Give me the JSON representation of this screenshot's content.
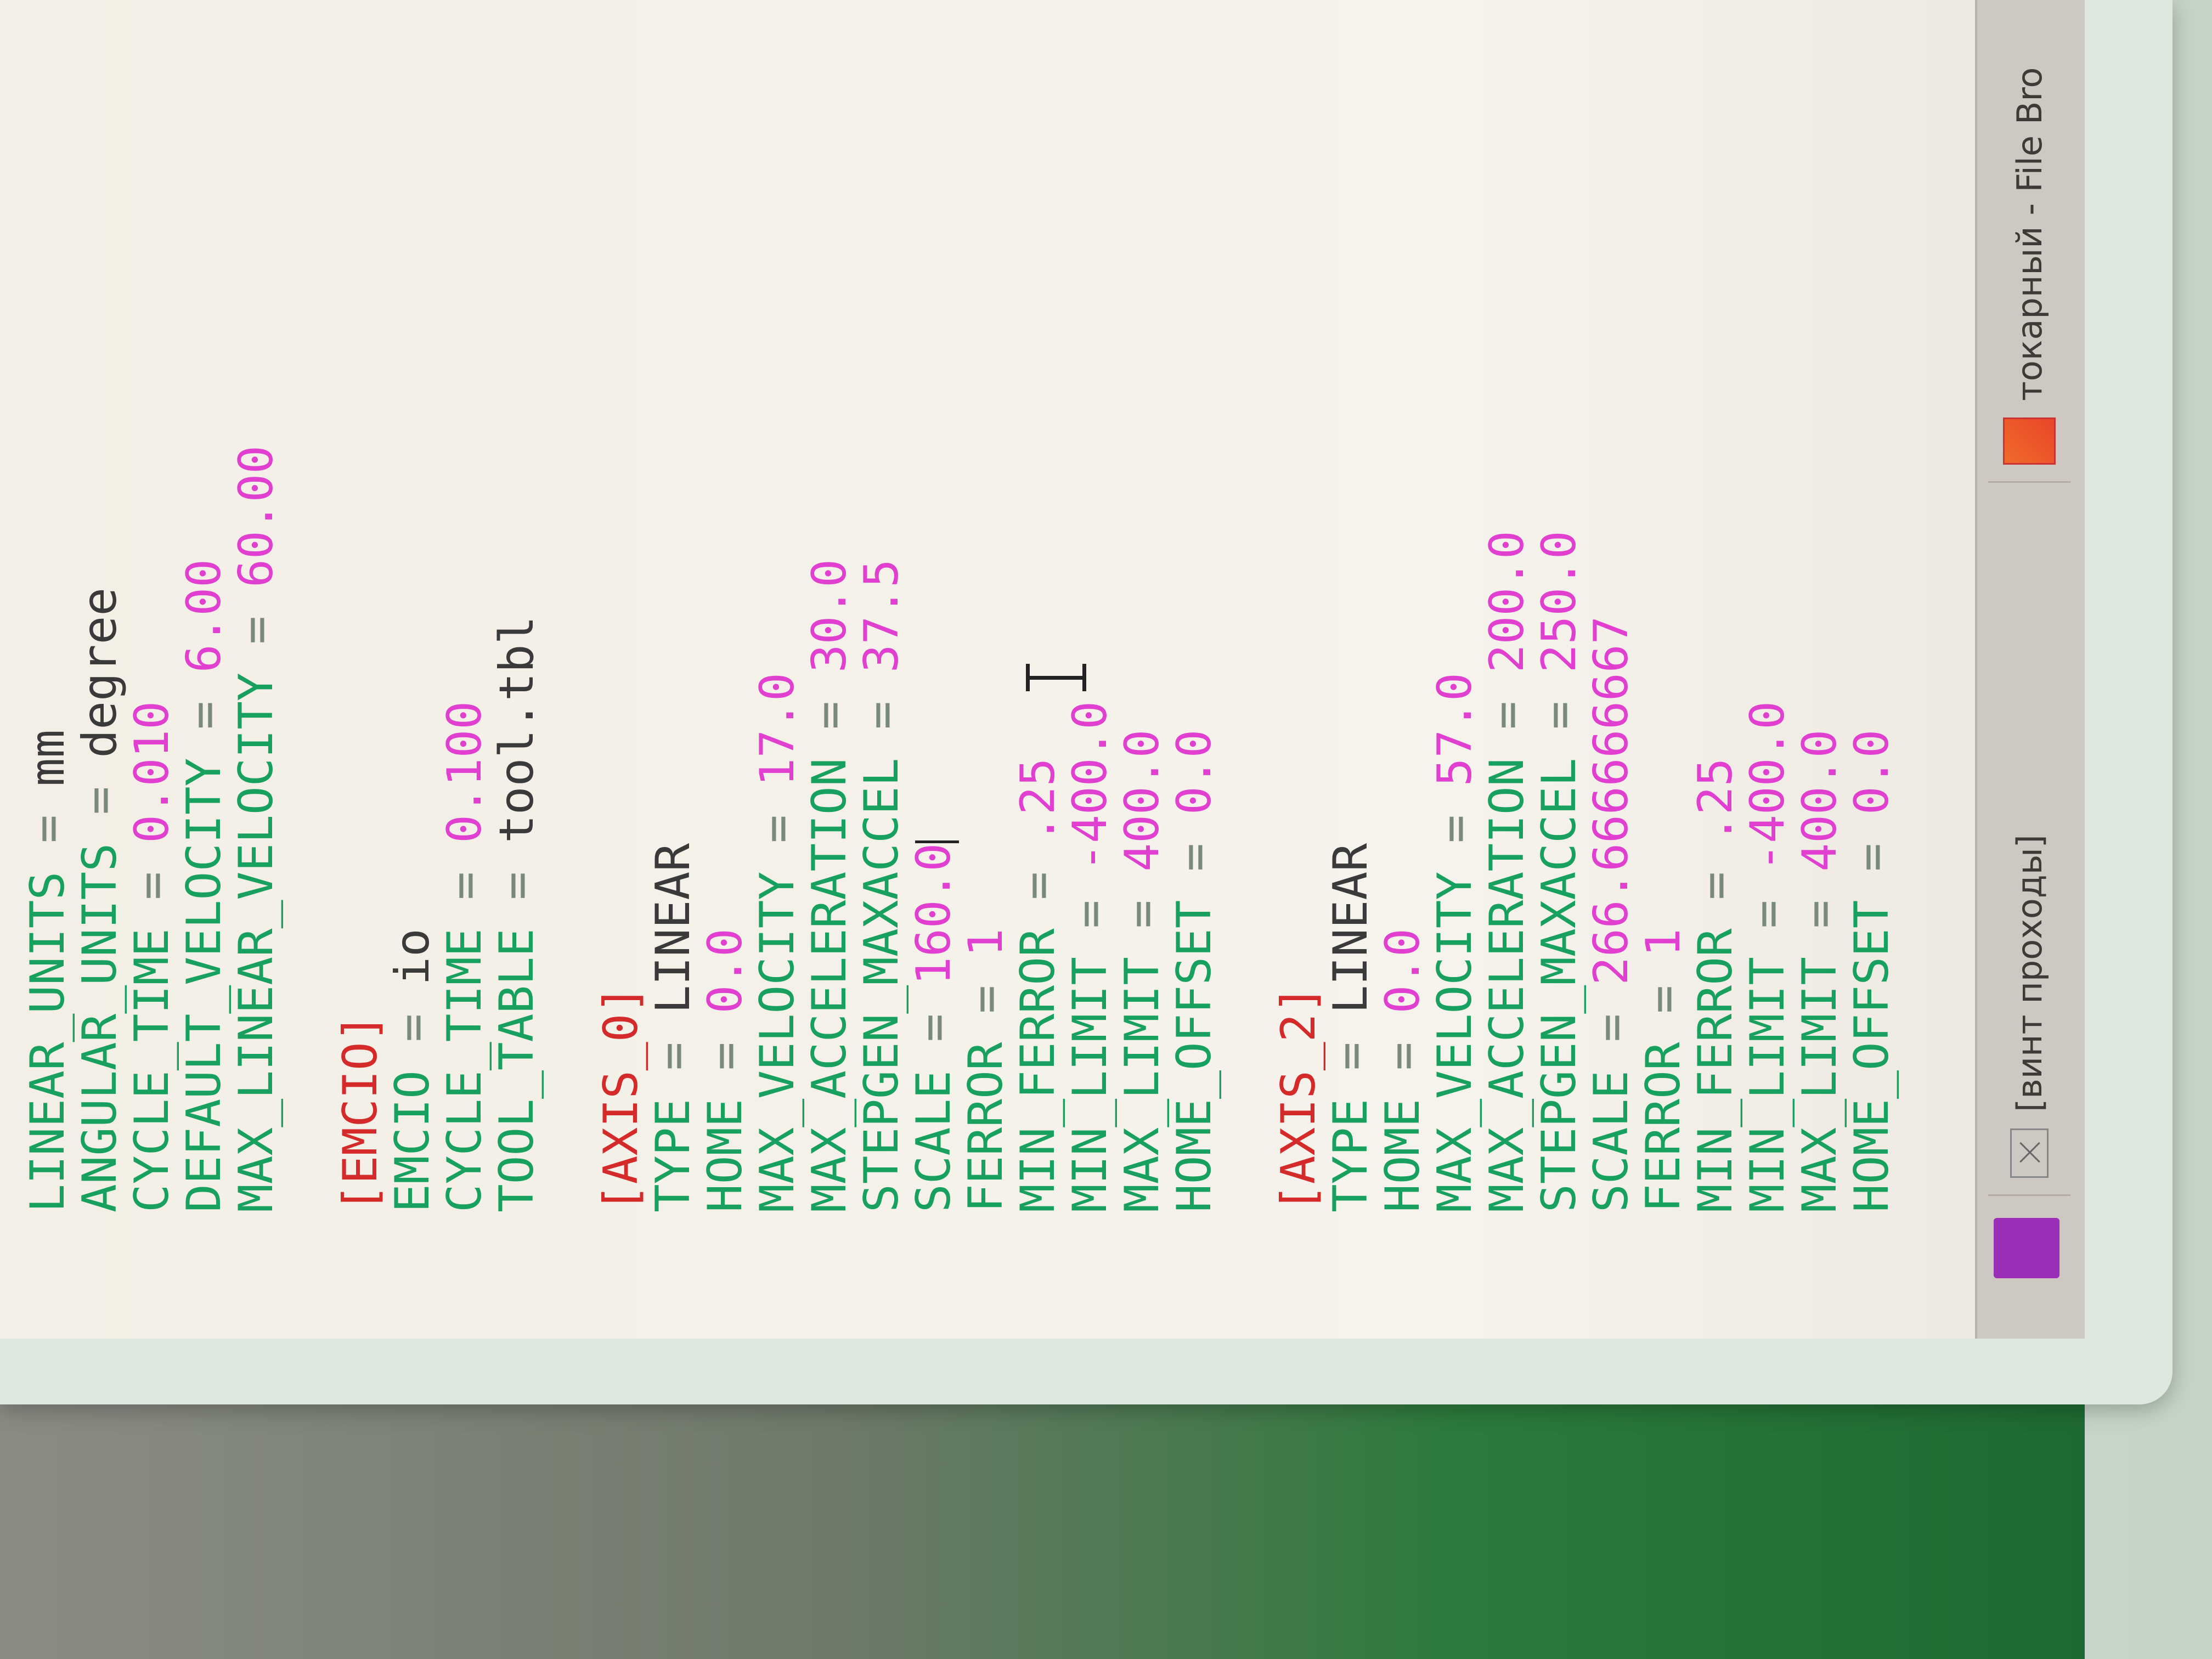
{
  "editor": {
    "lines": [
      {
        "type": "kv",
        "key": "LINEAR_UNITS",
        "value": "mm",
        "vtype": "str"
      },
      {
        "type": "kv",
        "key": "ANGULAR_UNITS",
        "value": "degree",
        "vtype": "str"
      },
      {
        "type": "kv",
        "key": "CYCLE_TIME",
        "value": "0.010",
        "vtype": "num"
      },
      {
        "type": "kv",
        "key": "DEFAULT_VELOCITY",
        "value": "6.00",
        "vtype": "num"
      },
      {
        "type": "kv",
        "key": "MAX_LINEAR_VELOCITY",
        "value": "60.00",
        "vtype": "num"
      },
      {
        "type": "blank"
      },
      {
        "type": "section",
        "text": "[EMCIO]"
      },
      {
        "type": "kv",
        "key": "EMCIO",
        "value": "io",
        "vtype": "str"
      },
      {
        "type": "kv",
        "key": "CYCLE_TIME",
        "value": "0.100",
        "vtype": "num"
      },
      {
        "type": "kv",
        "key": "TOOL_TABLE",
        "value": "tool.tbl",
        "vtype": "str"
      },
      {
        "type": "blank"
      },
      {
        "type": "section",
        "text": "[AXIS_0]"
      },
      {
        "type": "kv",
        "key": "TYPE",
        "value": "LINEAR",
        "vtype": "str"
      },
      {
        "type": "kv",
        "key": "HOME",
        "value": "0.0",
        "vtype": "num"
      },
      {
        "type": "kv",
        "key": "MAX_VELOCITY",
        "value": "17.0",
        "vtype": "num"
      },
      {
        "type": "kv",
        "key": "MAX_ACCELERATION",
        "value": "30.0",
        "vtype": "num"
      },
      {
        "type": "kv",
        "key": "STEPGEN_MAXACCEL",
        "value": "37.5",
        "vtype": "num"
      },
      {
        "type": "kv",
        "key": "SCALE",
        "value": "160.0",
        "vtype": "num",
        "caret": true
      },
      {
        "type": "kv",
        "key": "FERROR",
        "value": "1",
        "vtype": "num"
      },
      {
        "type": "kv",
        "key": "MIN_FERROR",
        "value": ".25",
        "vtype": "num"
      },
      {
        "type": "kv",
        "key": "MIN_LIMIT",
        "value": "-400.0",
        "vtype": "num"
      },
      {
        "type": "kv",
        "key": "MAX_LIMIT",
        "value": "400.0",
        "vtype": "num"
      },
      {
        "type": "kv",
        "key": "HOME_OFFSET",
        "value": "0.0",
        "vtype": "num"
      },
      {
        "type": "blank"
      },
      {
        "type": "section",
        "text": "[AXIS_2]"
      },
      {
        "type": "kv",
        "key": "TYPE",
        "value": "LINEAR",
        "vtype": "str"
      },
      {
        "type": "kv",
        "key": "HOME",
        "value": "0.0",
        "vtype": "num"
      },
      {
        "type": "kv",
        "key": "MAX_VELOCITY",
        "value": "57.0",
        "vtype": "num"
      },
      {
        "type": "kv",
        "key": "MAX_ACCELERATION",
        "value": "200.0",
        "vtype": "num"
      },
      {
        "type": "kv",
        "key": "STEPGEN_MAXACCEL",
        "value": "250.0",
        "vtype": "num"
      },
      {
        "type": "kv",
        "key": "SCALE",
        "value": "266.666666667",
        "vtype": "num"
      },
      {
        "type": "kv",
        "key": "FERROR",
        "value": "1",
        "vtype": "num"
      },
      {
        "type": "kv",
        "key": "MIN_FERROR",
        "value": ".25",
        "vtype": "num"
      },
      {
        "type": "kv",
        "key": "MIN_LIMIT",
        "value": "-400.0",
        "vtype": "num"
      },
      {
        "type": "kv",
        "key": "MAX_LIMIT",
        "value": "400.0",
        "vtype": "num"
      },
      {
        "type": "kv",
        "key": "HOME_OFFSET",
        "value": "0.0",
        "vtype": "num"
      }
    ],
    "equals": "=",
    "colors": {
      "section": "#d42a2a",
      "key": "#17a05e",
      "number": "#e03fcf",
      "text": "#3a3a3a"
    }
  },
  "taskbar": {
    "tasks": [
      {
        "label": "[винт проходы]",
        "icon": "terminal-icon"
      },
      {
        "label": "токарный - File Bro",
        "icon": "file-browser-icon"
      }
    ],
    "start_icon": "app-menu-icon"
  }
}
